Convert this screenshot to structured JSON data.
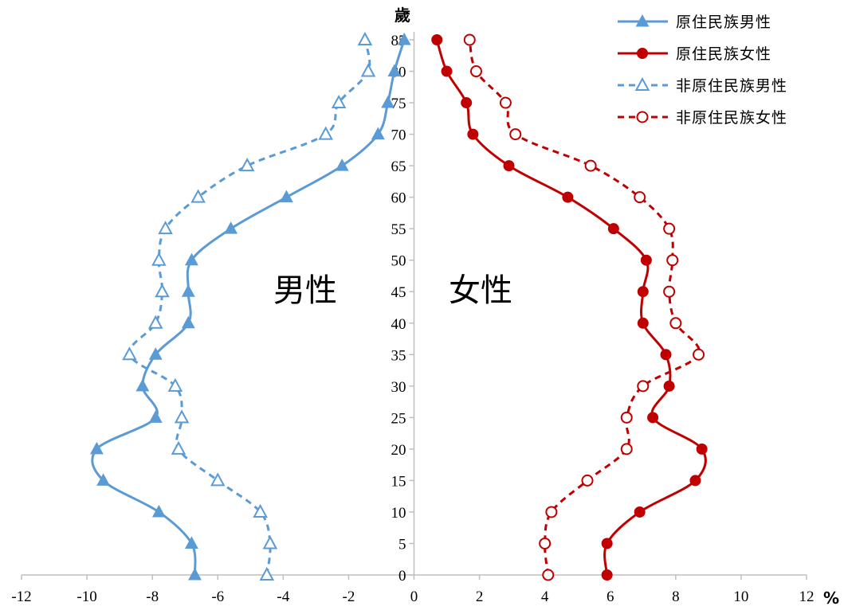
{
  "chart_data": {
    "type": "line",
    "y_unit": "歲",
    "x_unit": "%",
    "x_ticks": [
      "-12",
      "-10",
      "-8",
      "-6",
      "-4",
      "-2",
      "0",
      "2",
      "4",
      "6",
      "8",
      "10",
      "12"
    ],
    "xlim": [
      -12,
      12
    ],
    "ylim": [
      0,
      85
    ],
    "y_ticks": [
      0,
      5,
      10,
      15,
      20,
      25,
      30,
      35,
      40,
      45,
      50,
      55,
      60,
      65,
      70,
      75,
      80,
      85
    ],
    "grid": false,
    "legend_position": "top-right",
    "side_labels": {
      "male": "男性",
      "female": "女性"
    },
    "series": [
      {
        "name": "原住民族男性",
        "color": "#5B9BD5",
        "style": "solid",
        "marker": "triangle-filled",
        "points": [
          [
            -6.7,
            0
          ],
          [
            -6.8,
            5
          ],
          [
            -7.8,
            10
          ],
          [
            -9.5,
            15
          ],
          [
            -9.7,
            20
          ],
          [
            -7.9,
            25
          ],
          [
            -8.3,
            30
          ],
          [
            -7.9,
            35
          ],
          [
            -6.9,
            40
          ],
          [
            -6.9,
            45
          ],
          [
            -6.8,
            50
          ],
          [
            -5.6,
            55
          ],
          [
            -3.9,
            60
          ],
          [
            -2.2,
            65
          ],
          [
            -1.1,
            70
          ],
          [
            -0.8,
            75
          ],
          [
            -0.6,
            80
          ],
          [
            -0.3,
            85
          ]
        ]
      },
      {
        "name": "原住民族女性",
        "color": "#C00000",
        "style": "solid",
        "marker": "circle-filled",
        "points": [
          [
            5.9,
            0
          ],
          [
            5.9,
            5
          ],
          [
            6.9,
            10
          ],
          [
            8.6,
            15
          ],
          [
            8.8,
            20
          ],
          [
            7.3,
            25
          ],
          [
            7.8,
            30
          ],
          [
            7.7,
            35
          ],
          [
            7.0,
            40
          ],
          [
            7.0,
            45
          ],
          [
            7.1,
            50
          ],
          [
            6.1,
            55
          ],
          [
            4.7,
            60
          ],
          [
            2.9,
            65
          ],
          [
            1.8,
            70
          ],
          [
            1.6,
            75
          ],
          [
            1.0,
            80
          ],
          [
            0.7,
            85
          ]
        ]
      },
      {
        "name": "非原住民族男性",
        "color": "#5B9BD5",
        "style": "dashed",
        "marker": "triangle-open",
        "points": [
          [
            -4.5,
            0
          ],
          [
            -4.4,
            5
          ],
          [
            -4.7,
            10
          ],
          [
            -6.0,
            15
          ],
          [
            -7.2,
            20
          ],
          [
            -7.1,
            25
          ],
          [
            -7.3,
            30
          ],
          [
            -8.7,
            35
          ],
          [
            -7.9,
            40
          ],
          [
            -7.7,
            45
          ],
          [
            -7.8,
            50
          ],
          [
            -7.6,
            55
          ],
          [
            -6.6,
            60
          ],
          [
            -5.1,
            65
          ],
          [
            -2.7,
            70
          ],
          [
            -2.3,
            75
          ],
          [
            -1.4,
            80
          ],
          [
            -1.5,
            85
          ]
        ]
      },
      {
        "name": "非原住民族女性",
        "color": "#C00000",
        "style": "dashed",
        "marker": "circle-open",
        "points": [
          [
            4.1,
            0
          ],
          [
            4.0,
            5
          ],
          [
            4.2,
            10
          ],
          [
            5.3,
            15
          ],
          [
            6.5,
            20
          ],
          [
            6.5,
            25
          ],
          [
            7.0,
            30
          ],
          [
            8.7,
            35
          ],
          [
            8.0,
            40
          ],
          [
            7.8,
            45
          ],
          [
            7.9,
            50
          ],
          [
            7.8,
            55
          ],
          [
            6.9,
            60
          ],
          [
            5.4,
            65
          ],
          [
            3.1,
            70
          ],
          [
            2.8,
            75
          ],
          [
            1.9,
            80
          ],
          [
            1.7,
            85
          ]
        ]
      }
    ]
  }
}
